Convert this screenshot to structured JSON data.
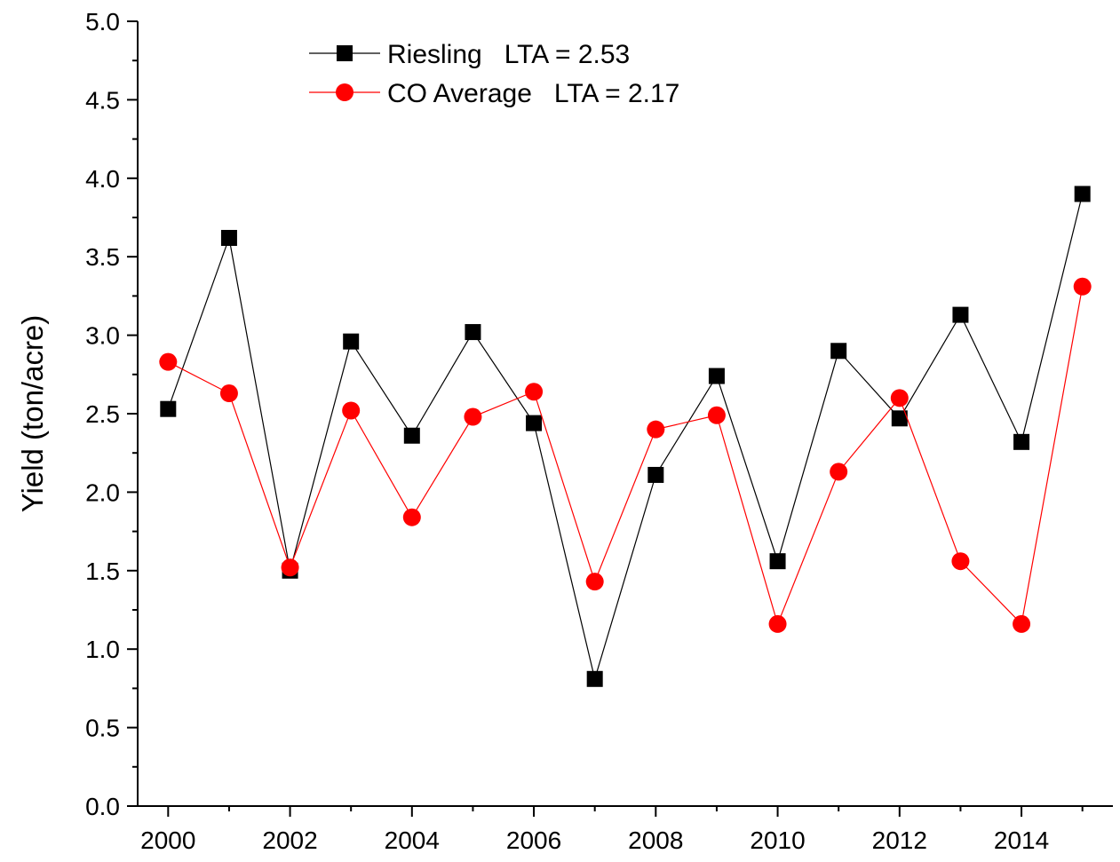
{
  "chart_data": {
    "type": "line",
    "title": "",
    "xlabel": "",
    "ylabel": "Yield (ton/acre)",
    "x": [
      2000,
      2001,
      2002,
      2003,
      2004,
      2005,
      2006,
      2007,
      2008,
      2009,
      2010,
      2011,
      2012,
      2013,
      2014,
      2015
    ],
    "xlim": [
      1999.5,
      2015.5
    ],
    "ylim": [
      0.0,
      5.0
    ],
    "xticks": [
      2000,
      2002,
      2004,
      2006,
      2008,
      2010,
      2012,
      2014
    ],
    "xtick_labels": [
      "2000",
      "2002",
      "2004",
      "2006",
      "2008",
      "2010",
      "2012",
      "2014"
    ],
    "yticks": [
      0.0,
      0.5,
      1.0,
      1.5,
      2.0,
      2.5,
      3.0,
      3.5,
      4.0,
      4.5,
      5.0
    ],
    "ytick_labels": [
      "0.0",
      "0.5",
      "1.0",
      "1.5",
      "2.0",
      "2.5",
      "3.0",
      "3.5",
      "4.0",
      "4.5",
      "5.0"
    ],
    "grid": false,
    "legend_position": "top-left",
    "series": [
      {
        "name": "Riesling   LTA = 2.53",
        "color": "#000000",
        "marker": "square",
        "values": [
          2.53,
          3.62,
          1.5,
          2.96,
          2.36,
          3.02,
          2.44,
          0.81,
          2.11,
          2.74,
          1.56,
          2.9,
          2.47,
          3.13,
          2.32,
          3.9
        ]
      },
      {
        "name": "CO Average   LTA = 2.17",
        "color": "#ff0000",
        "marker": "circle",
        "values": [
          2.83,
          2.63,
          1.52,
          2.52,
          1.84,
          2.48,
          2.64,
          1.43,
          2.4,
          2.49,
          1.16,
          2.13,
          2.6,
          1.56,
          1.16,
          3.31
        ]
      }
    ]
  }
}
